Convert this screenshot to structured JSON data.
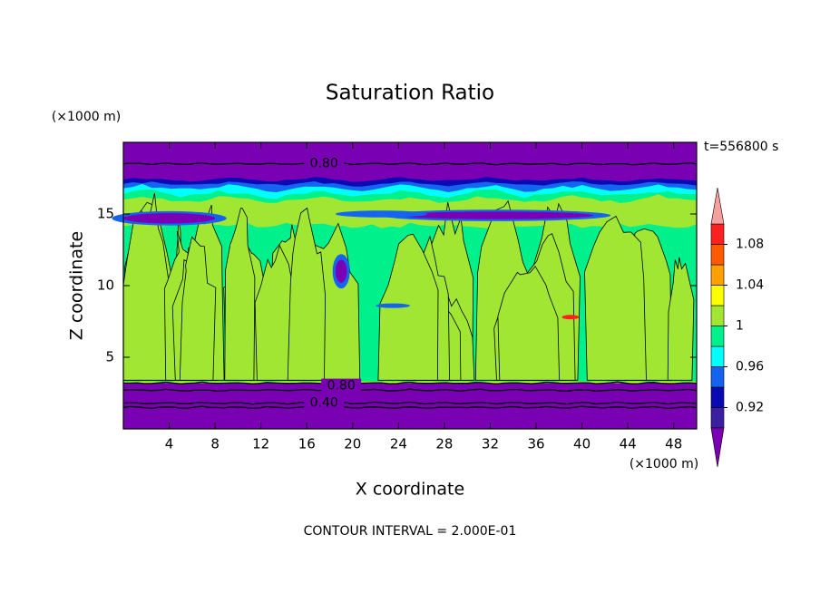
{
  "chart_data": {
    "type": "contour",
    "title": "Saturation Ratio",
    "x_label": "X coordinate",
    "y_label": "Z coordinate",
    "x_unit": "(×1000 m)",
    "y_unit": "(×1000 m)",
    "time_label": "t=556800 s",
    "footer": "CONTOUR INTERVAL = 2.000E-01",
    "xlim": [
      0,
      50
    ],
    "xticks": [
      4,
      8,
      12,
      16,
      20,
      24,
      28,
      32,
      36,
      40,
      44,
      48
    ],
    "ylim": [
      0,
      20
    ],
    "yticks": [
      5,
      10,
      15
    ],
    "contour_labels": [
      {
        "value": 0.8,
        "label": "0.80"
      },
      {
        "value": 0.8,
        "label": "0.80"
      },
      {
        "value": 0.4,
        "label": "0.40"
      }
    ],
    "colorbar": {
      "levels": [
        0.9,
        0.92,
        0.94,
        0.96,
        0.98,
        1,
        1.02,
        1.04,
        1.06,
        1.08,
        1.1
      ],
      "colors": [
        "#7a00b4",
        "#3c1ea0",
        "#0a0ab4",
        "#1464f0",
        "#00ffff",
        "#00f08c",
        "#a0e632",
        "#ffff00",
        "#ffa000",
        "#ff5a00",
        "#ff2020",
        "#f4a0a0"
      ],
      "ticks": [
        0.92,
        0.96,
        1,
        1.04,
        1.08
      ]
    }
  }
}
